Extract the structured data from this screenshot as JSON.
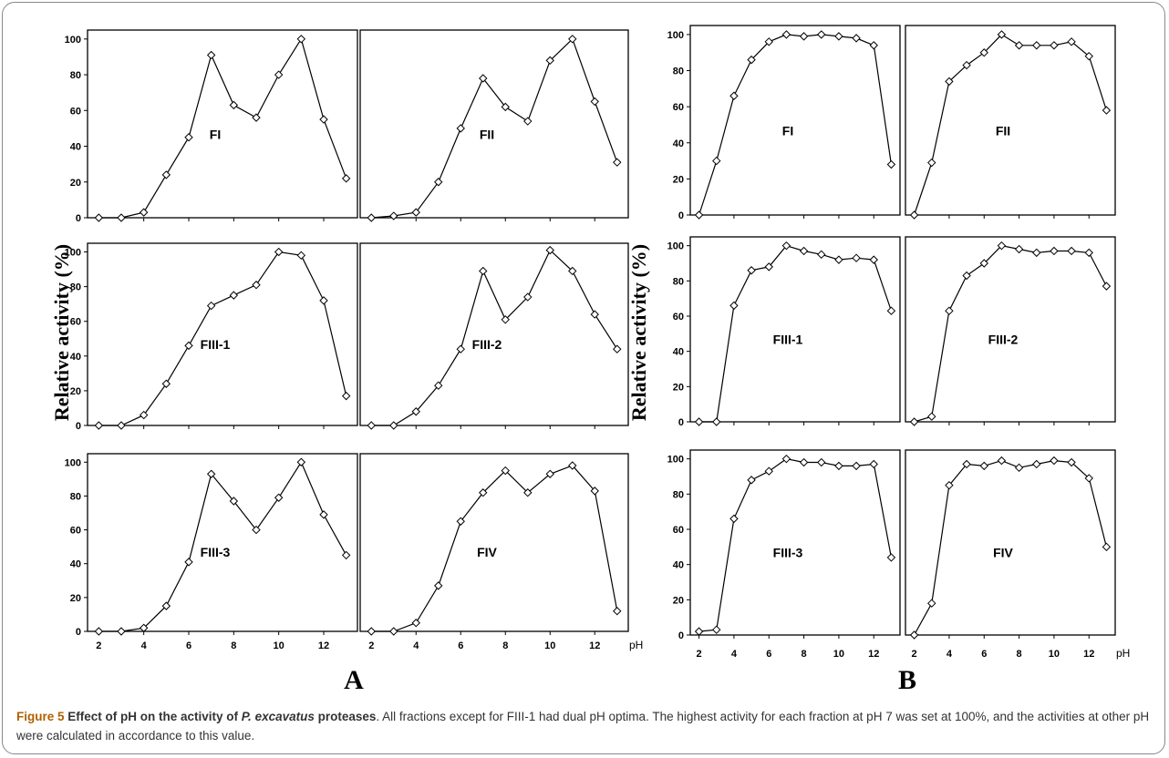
{
  "caption": {
    "label": "Figure 5",
    "title_prefix": "Effect of pH on the activity of ",
    "title_species": "P. excavatus",
    "title_suffix": " proteases",
    "text": ". All fractions except for FIII-1 had dual pH optima. The highest activity for each fraction at pH 7 was set at 100%, and the activities at other pH were calculated in accordance to this value."
  },
  "groups": [
    {
      "label": "A",
      "ylabel": "Relative activity (%)",
      "xlabel": "pH"
    },
    {
      "label": "B",
      "ylabel": "Relative activity (%)",
      "xlabel": "pH"
    }
  ],
  "chart_data": [
    {
      "type": "line",
      "group": "A",
      "title": "FI",
      "x": [
        2,
        3,
        4,
        5,
        6,
        7,
        8,
        9,
        10,
        11,
        12,
        13
      ],
      "values": [
        0,
        0,
        3,
        24,
        45,
        91,
        63,
        56,
        80,
        100,
        55,
        22
      ],
      "xlim": [
        1.5,
        13.5
      ],
      "ylim": [
        0,
        105
      ],
      "xticks": [
        2,
        4,
        6,
        8,
        10,
        12
      ],
      "yticks": [
        0,
        20,
        40,
        60,
        80,
        100
      ]
    },
    {
      "type": "line",
      "group": "A",
      "title": "FII",
      "x": [
        2,
        3,
        4,
        5,
        6,
        7,
        8,
        9,
        10,
        11,
        12,
        13
      ],
      "values": [
        0,
        1,
        3,
        20,
        50,
        78,
        62,
        54,
        88,
        100,
        65,
        31
      ],
      "xlim": [
        1.5,
        13.5
      ],
      "ylim": [
        0,
        105
      ],
      "xticks": [
        2,
        4,
        6,
        8,
        10,
        12
      ],
      "yticks": [
        0,
        20,
        40,
        60,
        80,
        100
      ]
    },
    {
      "type": "line",
      "group": "A",
      "title": "FIII-1",
      "x": [
        2,
        3,
        4,
        5,
        6,
        7,
        8,
        9,
        10,
        11,
        12,
        13
      ],
      "values": [
        0,
        0,
        6,
        24,
        46,
        69,
        75,
        81,
        100,
        98,
        72,
        17
      ],
      "xlim": [
        1.5,
        13.5
      ],
      "ylim": [
        0,
        105
      ],
      "xticks": [
        2,
        4,
        6,
        8,
        10,
        12
      ],
      "yticks": [
        0,
        20,
        40,
        60,
        80,
        100
      ]
    },
    {
      "type": "line",
      "group": "A",
      "title": "FIII-2",
      "x": [
        2,
        3,
        4,
        5,
        6,
        7,
        8,
        9,
        10,
        11,
        12,
        13
      ],
      "values": [
        0,
        0,
        8,
        23,
        44,
        89,
        61,
        74,
        101,
        89,
        64,
        44
      ],
      "xlim": [
        1.5,
        13.5
      ],
      "ylim": [
        0,
        105
      ],
      "xticks": [
        2,
        4,
        6,
        8,
        10,
        12
      ],
      "yticks": [
        0,
        20,
        40,
        60,
        80,
        100
      ]
    },
    {
      "type": "line",
      "group": "A",
      "title": "FIII-3",
      "x": [
        2,
        3,
        4,
        5,
        6,
        7,
        8,
        9,
        10,
        11,
        12,
        13
      ],
      "values": [
        0,
        0,
        2,
        15,
        41,
        93,
        77,
        60,
        79,
        100,
        69,
        45
      ],
      "xlim": [
        1.5,
        13.5
      ],
      "ylim": [
        0,
        105
      ],
      "xticks": [
        2,
        4,
        6,
        8,
        10,
        12
      ],
      "yticks": [
        0,
        20,
        40,
        60,
        80,
        100
      ]
    },
    {
      "type": "line",
      "group": "A",
      "title": "FIV",
      "x": [
        2,
        3,
        4,
        5,
        6,
        7,
        8,
        9,
        10,
        11,
        12,
        13
      ],
      "values": [
        0,
        0,
        5,
        27,
        65,
        82,
        95,
        82,
        93,
        98,
        83,
        12
      ],
      "xlim": [
        1.5,
        13.5
      ],
      "ylim": [
        0,
        105
      ],
      "xticks": [
        2,
        4,
        6,
        8,
        10,
        12
      ],
      "yticks": [
        0,
        20,
        40,
        60,
        80,
        100
      ]
    },
    {
      "type": "line",
      "group": "B",
      "title": "FI",
      "x": [
        2,
        3,
        4,
        5,
        6,
        7,
        8,
        9,
        10,
        11,
        12,
        13
      ],
      "values": [
        0,
        30,
        66,
        86,
        96,
        100,
        99,
        100,
        99,
        98,
        94,
        28
      ],
      "xlim": [
        1.5,
        13.5
      ],
      "ylim": [
        0,
        105
      ],
      "xticks": [
        2,
        4,
        6,
        8,
        10,
        12
      ],
      "yticks": [
        0,
        20,
        40,
        60,
        80,
        100
      ]
    },
    {
      "type": "line",
      "group": "B",
      "title": "FII",
      "x": [
        2,
        3,
        4,
        5,
        6,
        7,
        8,
        9,
        10,
        11,
        12,
        13
      ],
      "values": [
        0,
        29,
        74,
        83,
        90,
        100,
        94,
        94,
        94,
        96,
        88,
        58
      ],
      "xlim": [
        1.5,
        13.5
      ],
      "ylim": [
        0,
        105
      ],
      "xticks": [
        2,
        4,
        6,
        8,
        10,
        12
      ],
      "yticks": [
        0,
        20,
        40,
        60,
        80,
        100
      ]
    },
    {
      "type": "line",
      "group": "B",
      "title": "FIII-1",
      "x": [
        2,
        3,
        4,
        5,
        6,
        7,
        8,
        9,
        10,
        11,
        12,
        13
      ],
      "values": [
        0,
        0,
        66,
        86,
        88,
        100,
        97,
        95,
        92,
        93,
        92,
        63
      ],
      "xlim": [
        1.5,
        13.5
      ],
      "ylim": [
        0,
        105
      ],
      "xticks": [
        2,
        4,
        6,
        8,
        10,
        12
      ],
      "yticks": [
        0,
        20,
        40,
        60,
        80,
        100
      ]
    },
    {
      "type": "line",
      "group": "B",
      "title": "FIII-2",
      "x": [
        2,
        3,
        4,
        5,
        6,
        7,
        8,
        9,
        10,
        11,
        12,
        13
      ],
      "values": [
        0,
        3,
        63,
        83,
        90,
        100,
        98,
        96,
        97,
        97,
        96,
        77
      ],
      "xlim": [
        1.5,
        13.5
      ],
      "ylim": [
        0,
        105
      ],
      "xticks": [
        2,
        4,
        6,
        8,
        10,
        12
      ],
      "yticks": [
        0,
        20,
        40,
        60,
        80,
        100
      ]
    },
    {
      "type": "line",
      "group": "B",
      "title": "FIII-3",
      "x": [
        2,
        3,
        4,
        5,
        6,
        7,
        8,
        9,
        10,
        11,
        12,
        13
      ],
      "values": [
        2,
        3,
        66,
        88,
        93,
        100,
        98,
        98,
        96,
        96,
        97,
        44
      ],
      "xlim": [
        1.5,
        13.5
      ],
      "ylim": [
        0,
        105
      ],
      "xticks": [
        2,
        4,
        6,
        8,
        10,
        12
      ],
      "yticks": [
        0,
        20,
        40,
        60,
        80,
        100
      ]
    },
    {
      "type": "line",
      "group": "B",
      "title": "FIV",
      "x": [
        2,
        3,
        4,
        5,
        6,
        7,
        8,
        9,
        10,
        11,
        12,
        13
      ],
      "values": [
        0,
        18,
        85,
        97,
        96,
        99,
        95,
        97,
        99,
        98,
        89,
        50
      ],
      "xlim": [
        1.5,
        13.5
      ],
      "ylim": [
        0,
        105
      ],
      "xticks": [
        2,
        4,
        6,
        8,
        10,
        12
      ],
      "yticks": [
        0,
        20,
        40,
        60,
        80,
        100
      ]
    }
  ]
}
